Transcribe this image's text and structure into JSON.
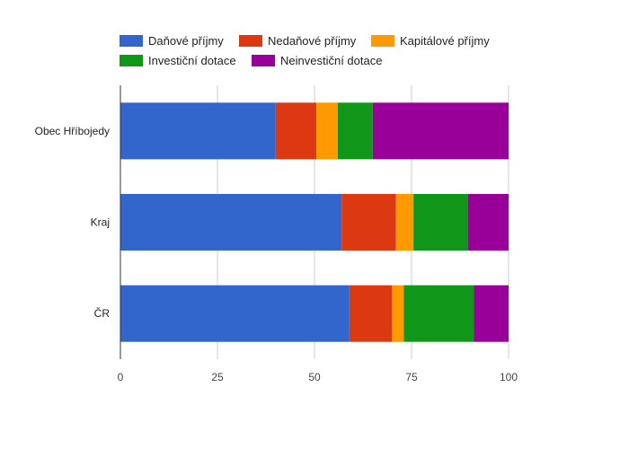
{
  "chart_data": {
    "type": "bar",
    "orientation": "horizontal",
    "stacked": true,
    "title": "",
    "xlabel": "",
    "ylabel": "",
    "xlim": [
      0,
      100
    ],
    "x_ticks": [
      0,
      25,
      50,
      75,
      100
    ],
    "grid": true,
    "legend_position": "top",
    "categories": [
      "Obec Hříbojedy",
      "Kraj",
      "ČR"
    ],
    "series": [
      {
        "name": "Daňové příjmy",
        "color": "#3366cc",
        "values": [
          40,
          57,
          59
        ]
      },
      {
        "name": "Nedaňové příjmy",
        "color": "#dc3912",
        "values": [
          10.5,
          14,
          11
        ]
      },
      {
        "name": "Kapitálové příjmy",
        "color": "#ff9900",
        "values": [
          5.5,
          4.5,
          3
        ]
      },
      {
        "name": "Investiční dotace",
        "color": "#109618",
        "values": [
          9,
          14,
          18
        ]
      },
      {
        "name": "Neinvestiční dotace",
        "color": "#990099",
        "values": [
          35,
          10.5,
          9
        ]
      }
    ]
  }
}
